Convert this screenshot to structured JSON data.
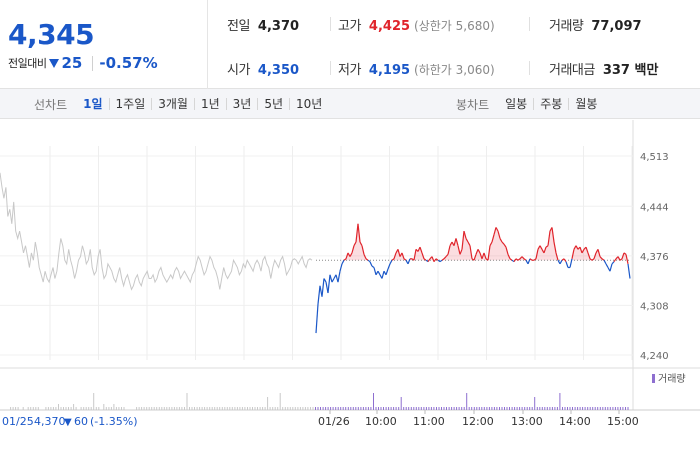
{
  "quote": {
    "price": "4,345",
    "change_label": "전일대비",
    "change_amount": "25",
    "change_percent": "-0.57%",
    "colors": {
      "down": "#1a57c8",
      "up": "#e0242b"
    }
  },
  "stats": {
    "prev_close": {
      "label": "전일",
      "value": "4,370"
    },
    "open": {
      "label": "시가",
      "value": "4,350"
    },
    "high": {
      "label": "고가",
      "value": "4,425",
      "sub": "(상한가 5,680)"
    },
    "low": {
      "label": "저가",
      "value": "4,195",
      "sub": "(하한가 3,060)"
    },
    "volume": {
      "label": "거래량",
      "value": "77,097"
    },
    "trade_value": {
      "label": "거래대금",
      "value": "337 백만"
    }
  },
  "line_chart_bar": {
    "title": "선차트",
    "items": [
      "1일",
      "1주일",
      "3개월",
      "1년",
      "3년",
      "5년",
      "10년"
    ],
    "active": "1일"
  },
  "candle_chart_bar": {
    "title": "봉차트",
    "items": [
      "일봉",
      "주봉",
      "월봉"
    ]
  },
  "prev_day_info": {
    "date": "01/25",
    "close": "4,370",
    "change": "60",
    "change_percent": "(-1.35%)"
  },
  "chart_data": {
    "type": "line",
    "title": "",
    "y_ticks": [
      "4,513",
      "4,444",
      "4,376",
      "4,308",
      "4,240"
    ],
    "ylim": [
      4240,
      4513
    ],
    "baseline": 4370,
    "x_ticks": [
      "01/25",
      "01/26",
      "10:00",
      "11:00",
      "12:00",
      "13:00",
      "14:00",
      "15:00"
    ],
    "volume_legend": "거래량",
    "series": [
      {
        "day": "01/25",
        "color": "#c8c8c8",
        "values": [
          4490,
          4470,
          4455,
          4470,
          4430,
          4440,
          4420,
          4450,
          4410,
          4400,
          4410,
          4395,
          4380,
          4390,
          4375,
          4360,
          4380,
          4370,
          4395,
          4380,
          4360,
          4350,
          4340,
          4355,
          4345,
          4340,
          4350,
          4360,
          4345,
          4355,
          4380,
          4400,
          4390,
          4370,
          4365,
          4385,
          4370,
          4360,
          4345,
          4355,
          4370,
          4375,
          4390,
          4380,
          4365,
          4370,
          4385,
          4360,
          4350,
          4355,
          4375,
          4385,
          4360,
          4345,
          4350,
          4365,
          4360,
          4355,
          4345,
          4340,
          4350,
          4360,
          4345,
          4335,
          4345,
          4350,
          4340,
          4330,
          4335,
          4345,
          4350,
          4340,
          4335,
          4345,
          4350,
          4355,
          4345,
          4345,
          4350,
          4340,
          4345,
          4355,
          4360,
          4350,
          4345,
          4340,
          4345,
          4350,
          4345,
          4355,
          4360,
          4355,
          4345,
          4350,
          4355,
          4350,
          4345,
          4340,
          4350,
          4355,
          4365,
          4375,
          4370,
          4360,
          4350,
          4355,
          4365,
          4375,
          4370,
          4360,
          4355,
          4345,
          4330,
          4345,
          4360,
          4350,
          4345,
          4350,
          4355,
          4370,
          4365,
          4360,
          4350,
          4355,
          4365,
          4360,
          4370,
          4365,
          4360,
          4355,
          4365,
          4370,
          4365,
          4355,
          4370,
          4375,
          4365,
          4360,
          4345,
          4360,
          4370,
          4365,
          4360,
          4370,
          4375,
          4365,
          4350,
          4355,
          4360,
          4370,
          4372,
          4370,
          4365,
          4370,
          4375,
          4365,
          4360,
          4370,
          4372,
          4370
        ]
      },
      {
        "day": "01/26",
        "values": [
          4270,
          4310,
          4335,
          4320,
          4345,
          4340,
          4325,
          4350,
          4340,
          4345,
          4350,
          4340,
          4355,
          4365,
          4370,
          4372,
          4380,
          4375,
          4380,
          4390,
          4395,
          4420,
          4395,
          4390,
          4378,
          4372,
          4370,
          4368,
          4362,
          4360,
          4350,
          4355,
          4350,
          4345,
          4355,
          4350,
          4358,
          4365,
          4370,
          4372,
          4380,
          4385,
          4375,
          4380,
          4372,
          4370,
          4365,
          4372,
          4372,
          4370,
          4385,
          4382,
          4388,
          4380,
          4372,
          4370,
          4368,
          4372,
          4375,
          4368,
          4372,
          4370,
          4368,
          4370,
          4372,
          4375,
          4378,
          4390,
          4395,
          4390,
          4400,
          4390,
          4378,
          4385,
          4410,
          4400,
          4395,
          4390,
          4372,
          4370,
          4378,
          4385,
          4380,
          4372,
          4380,
          4372,
          4370,
          4390,
          4395,
          4405,
          4415,
          4410,
          4400,
          4395,
          4392,
          4388,
          4378,
          4372,
          4370,
          4368,
          4372,
          4370,
          4372,
          4375,
          4372,
          4370,
          4365,
          4372,
          4370,
          4370,
          4372,
          4385,
          4390,
          4385,
          4380,
          4388,
          4390,
          4410,
          4415,
          4395,
          4380,
          4370,
          4365,
          4370,
          4372,
          4368,
          4360,
          4360,
          4372,
          4385,
          4390,
          4385,
          4388,
          4380,
          4385,
          4388,
          4380,
          4372,
          4370,
          4372,
          4380,
          4385,
          4375,
          4372,
          4370,
          4365,
          4360,
          4355,
          4365,
          4368,
          4372,
          4375,
          4370,
          4372,
          4380,
          4378,
          4365,
          4345
        ]
      }
    ],
    "volume": [
      0,
      0,
      0,
      0,
      1,
      1,
      1,
      1,
      0,
      1,
      0,
      1,
      1,
      1,
      1,
      1,
      0,
      0,
      1,
      1,
      1,
      1,
      1,
      2,
      1,
      1,
      1,
      1,
      1,
      2,
      1,
      0,
      1,
      1,
      1,
      1,
      1,
      1,
      1,
      1,
      0,
      2,
      1,
      1,
      1,
      2,
      1,
      1,
      1,
      1,
      0,
      0,
      0,
      0,
      1,
      1,
      1,
      1,
      1,
      1,
      1,
      1,
      1,
      1,
      1,
      1,
      1,
      1,
      1,
      1,
      1,
      1,
      1,
      1,
      1,
      1,
      1,
      1,
      1,
      1,
      1,
      1,
      1,
      1,
      1,
      1,
      1,
      1,
      1,
      1,
      1,
      1,
      1,
      1,
      1,
      1,
      1,
      1,
      1,
      1,
      1,
      1,
      1,
      1,
      1,
      1,
      1,
      1,
      1,
      1,
      1,
      1,
      1,
      1,
      1,
      1,
      1,
      1,
      1,
      1,
      1,
      1,
      1,
      1,
      1,
      1,
      1,
      1,
      1,
      1,
      1,
      1,
      1,
      1,
      1,
      1,
      1,
      1,
      1,
      1,
      1,
      1,
      1,
      1,
      1,
      1,
      1,
      1,
      1,
      1,
      1,
      1,
      1,
      1,
      1,
      1,
      1,
      1,
      1,
      1,
      1,
      1,
      1,
      1,
      1,
      1,
      1,
      1,
      1,
      1,
      1,
      1,
      1,
      1,
      1,
      1,
      1,
      1,
      1,
      1,
      1,
      1,
      1,
      1,
      1,
      1,
      1,
      1,
      1,
      1,
      1,
      1,
      1,
      1,
      1,
      1,
      1,
      1,
      1,
      1,
      1,
      1,
      1,
      1,
      1,
      1,
      1,
      1,
      1,
      1,
      1,
      1,
      1,
      1,
      1,
      1,
      1,
      1,
      1,
      1,
      1,
      1,
      1,
      1,
      1,
      1,
      1,
      1,
      1,
      1,
      1,
      1,
      1,
      1,
      1,
      1,
      1,
      1,
      1,
      1,
      1,
      1,
      1,
      1,
      1,
      1,
      1,
      1,
      1,
      1
    ]
  }
}
